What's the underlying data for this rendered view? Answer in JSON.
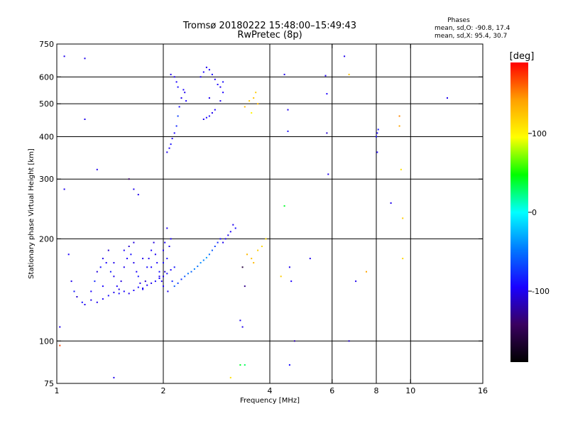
{
  "header": {
    "title_line1": "Tromsø 20180222 15:48:00–15:49:43",
    "title_line2": "RwPretec (8p)"
  },
  "phases": {
    "heading": "Phases",
    "line1": "mean, sd,O: -90.8, 17.4",
    "line2": "mean, sd,X:  95.4, 30.7"
  },
  "colorbar": {
    "title": "[deg]",
    "ticks": [
      {
        "value": 100,
        "label": "100"
      },
      {
        "value": 0,
        "label": "0"
      },
      {
        "value": -100,
        "label": "-100"
      }
    ],
    "range": [
      -190,
      190
    ],
    "stops": [
      "#000000",
      "#3a0060",
      "#1a00ff",
      "#0078ff",
      "#00ffff",
      "#00ff00",
      "#ffff00",
      "#ffa000",
      "#ff0000"
    ]
  },
  "chart_data": {
    "type": "scatter",
    "xlabel": "Frequency [MHz]",
    "ylabel": "Stationary phase Virtual Height [km]",
    "xscale": "log",
    "yscale": "log",
    "xlim": [
      1,
      16
    ],
    "ylim": [
      75,
      750
    ],
    "xticks": [
      {
        "value": 1,
        "label": "1"
      },
      {
        "value": 2,
        "label": "2"
      },
      {
        "value": 4,
        "label": "4"
      },
      {
        "value": 6,
        "label": "6"
      },
      {
        "value": 8,
        "label": "8"
      },
      {
        "value": 10,
        "label": "10"
      },
      {
        "value": 16,
        "label": "16"
      }
    ],
    "yticks": [
      {
        "value": 75,
        "label": "75"
      },
      {
        "value": 100,
        "label": "100"
      },
      {
        "value": 200,
        "label": "200"
      },
      {
        "value": 300,
        "label": "300"
      },
      {
        "value": 400,
        "label": "400"
      },
      {
        "value": 500,
        "label": "500"
      },
      {
        "value": 600,
        "label": "600"
      },
      {
        "value": 750,
        "label": "750"
      }
    ],
    "gridlines_x": [
      2,
      4,
      6,
      8,
      10
    ],
    "gridlines_y": [
      100,
      200,
      300,
      400,
      500,
      600
    ],
    "grid": true,
    "color_by": "phase [deg]",
    "points": [
      [
        1.08,
        180,
        -95
      ],
      [
        1.1,
        150,
        -100
      ],
      [
        1.12,
        140,
        -85
      ],
      [
        1.14,
        135,
        -110
      ],
      [
        1.18,
        130,
        -90
      ],
      [
        1.2,
        128,
        -100
      ],
      [
        1.25,
        140,
        -95
      ],
      [
        1.28,
        150,
        -80
      ],
      [
        1.3,
        160,
        -105
      ],
      [
        1.33,
        165,
        -90
      ],
      [
        1.35,
        175,
        -100
      ],
      [
        1.38,
        170,
        -95
      ],
      [
        1.4,
        185,
        -110
      ],
      [
        1.42,
        160,
        -85
      ],
      [
        1.45,
        155,
        -100
      ],
      [
        1.48,
        145,
        -95
      ],
      [
        1.5,
        138,
        -90
      ],
      [
        1.52,
        150,
        -105
      ],
      [
        1.55,
        165,
        -100
      ],
      [
        1.58,
        175,
        -95
      ],
      [
        1.6,
        190,
        -110
      ],
      [
        1.62,
        180,
        -90
      ],
      [
        1.65,
        170,
        -100
      ],
      [
        1.68,
        160,
        -95
      ],
      [
        1.7,
        155,
        -85
      ],
      [
        1.72,
        148,
        -100
      ],
      [
        1.75,
        142,
        -95
      ],
      [
        1.78,
        150,
        -110
      ],
      [
        1.8,
        165,
        -90
      ],
      [
        1.82,
        175,
        -100
      ],
      [
        1.85,
        185,
        -95
      ],
      [
        1.88,
        195,
        -105
      ],
      [
        1.9,
        180,
        -100
      ],
      [
        1.92,
        170,
        -95
      ],
      [
        1.95,
        160,
        -90
      ],
      [
        1.98,
        150,
        -100
      ],
      [
        2.0,
        145,
        -95
      ],
      [
        2.02,
        160,
        -110
      ],
      [
        2.05,
        175,
        -90
      ],
      [
        2.08,
        190,
        -100
      ],
      [
        2.1,
        200,
        -95
      ],
      [
        2.05,
        215,
        -100
      ],
      [
        2.12,
        150,
        -80
      ],
      [
        2.15,
        145,
        -60
      ],
      [
        2.2,
        148,
        -70
      ],
      [
        2.25,
        152,
        -75
      ],
      [
        2.3,
        155,
        -60
      ],
      [
        2.35,
        158,
        -50
      ],
      [
        2.4,
        160,
        -55
      ],
      [
        2.45,
        163,
        -45
      ],
      [
        2.5,
        166,
        -50
      ],
      [
        2.55,
        170,
        -40
      ],
      [
        2.6,
        173,
        -45
      ],
      [
        2.65,
        176,
        -35
      ],
      [
        2.7,
        180,
        -50
      ],
      [
        2.75,
        185,
        -60
      ],
      [
        2.8,
        190,
        -70
      ],
      [
        2.85,
        195,
        -80
      ],
      [
        2.9,
        200,
        -90
      ],
      [
        2.95,
        195,
        -100
      ],
      [
        3.0,
        200,
        -95
      ],
      [
        3.05,
        205,
        -100
      ],
      [
        3.1,
        210,
        -95
      ],
      [
        3.15,
        220,
        -100
      ],
      [
        3.2,
        215,
        -90
      ],
      [
        1.3,
        130,
        -100
      ],
      [
        1.35,
        133,
        -95
      ],
      [
        1.4,
        136,
        -90
      ],
      [
        1.45,
        139,
        -100
      ],
      [
        1.5,
        142,
        -105
      ],
      [
        1.55,
        140,
        -95
      ],
      [
        1.6,
        138,
        -100
      ],
      [
        1.65,
        141,
        -95
      ],
      [
        1.7,
        144,
        -90
      ],
      [
        1.75,
        143,
        -100
      ],
      [
        1.8,
        146,
        -95
      ],
      [
        1.85,
        148,
        -100
      ],
      [
        1.9,
        150,
        -90
      ],
      [
        1.95,
        153,
        -95
      ],
      [
        2.0,
        155,
        -100
      ],
      [
        2.05,
        158,
        -90
      ],
      [
        2.1,
        162,
        -95
      ],
      [
        2.15,
        165,
        -85
      ],
      [
        1.25,
        132,
        -100
      ],
      [
        1.35,
        145,
        -95
      ],
      [
        1.45,
        170,
        -100
      ],
      [
        1.55,
        185,
        -95
      ],
      [
        1.65,
        195,
        -105
      ],
      [
        1.75,
        175,
        -100
      ],
      [
        1.85,
        165,
        -95
      ],
      [
        1.95,
        155,
        -100
      ],
      [
        2.0,
        170,
        -90
      ],
      [
        2.0,
        185,
        -100
      ],
      [
        2.02,
        195,
        -95
      ],
      [
        2.06,
        140,
        -100
      ],
      [
        2.05,
        360,
        -100
      ],
      [
        2.08,
        370,
        -95
      ],
      [
        2.1,
        380,
        -90
      ],
      [
        2.12,
        395,
        -100
      ],
      [
        2.15,
        410,
        -95
      ],
      [
        2.18,
        430,
        -80
      ],
      [
        2.2,
        460,
        -70
      ],
      [
        2.22,
        490,
        -90
      ],
      [
        2.25,
        520,
        -100
      ],
      [
        2.28,
        550,
        -95
      ],
      [
        2.3,
        540,
        -100
      ],
      [
        2.32,
        510,
        -95
      ],
      [
        2.15,
        600,
        -100
      ],
      [
        2.18,
        580,
        -95
      ],
      [
        2.2,
        560,
        -90
      ],
      [
        2.1,
        610,
        -100
      ],
      [
        2.55,
        600,
        -100
      ],
      [
        2.6,
        620,
        -95
      ],
      [
        2.65,
        640,
        -100
      ],
      [
        2.7,
        630,
        -95
      ],
      [
        2.75,
        610,
        -90
      ],
      [
        2.8,
        590,
        -100
      ],
      [
        2.85,
        570,
        -95
      ],
      [
        2.9,
        560,
        -100
      ],
      [
        2.95,
        580,
        -90
      ],
      [
        2.6,
        450,
        -100
      ],
      [
        2.65,
        455,
        -95
      ],
      [
        2.7,
        460,
        -90
      ],
      [
        2.75,
        470,
        -100
      ],
      [
        2.8,
        480,
        -95
      ],
      [
        2.9,
        510,
        -100
      ],
      [
        2.95,
        540,
        -95
      ],
      [
        2.7,
        520,
        -100
      ],
      [
        3.4,
        490,
        130
      ],
      [
        3.5,
        510,
        120
      ],
      [
        3.6,
        520,
        125
      ],
      [
        3.7,
        500,
        130
      ],
      [
        3.65,
        540,
        120
      ],
      [
        3.55,
        470,
        100
      ],
      [
        3.45,
        180,
        130
      ],
      [
        3.55,
        175,
        125
      ],
      [
        3.6,
        170,
        130
      ],
      [
        3.7,
        185,
        120
      ],
      [
        3.8,
        190,
        115
      ],
      [
        3.9,
        200,
        110
      ],
      [
        3.35,
        165,
        -160
      ],
      [
        3.4,
        145,
        -130
      ],
      [
        3.3,
        115,
        -100
      ],
      [
        3.35,
        110,
        -100
      ],
      [
        3.3,
        85,
        40
      ],
      [
        3.4,
        85,
        30
      ],
      [
        4.55,
        165,
        -100
      ],
      [
        4.6,
        150,
        -95
      ],
      [
        4.7,
        100,
        -120
      ],
      [
        4.55,
        85,
        -90
      ],
      [
        4.5,
        480,
        -100
      ],
      [
        4.5,
        415,
        -90
      ],
      [
        4.4,
        250,
        40
      ],
      [
        4.4,
        610,
        -100
      ],
      [
        4.3,
        155,
        120
      ],
      [
        5.2,
        175,
        -100
      ],
      [
        5.75,
        605,
        -100
      ],
      [
        5.8,
        535,
        -95
      ],
      [
        5.8,
        410,
        -110
      ],
      [
        5.85,
        310,
        -100
      ],
      [
        6.5,
        690,
        -100
      ],
      [
        6.7,
        610,
        125
      ],
      [
        6.7,
        100,
        -110
      ],
      [
        7.0,
        150,
        -100
      ],
      [
        7.5,
        160,
        140
      ],
      [
        8.0,
        400,
        -90
      ],
      [
        8.05,
        410,
        -95
      ],
      [
        8.1,
        420,
        -85
      ],
      [
        8.05,
        360,
        -95
      ],
      [
        8.8,
        255,
        -100
      ],
      [
        9.3,
        460,
        150
      ],
      [
        9.3,
        430,
        140
      ],
      [
        9.4,
        320,
        110
      ],
      [
        9.5,
        230,
        120
      ],
      [
        9.5,
        175,
        115
      ],
      [
        12.7,
        520,
        -100
      ],
      [
        1.05,
        690,
        -100
      ],
      [
        1.2,
        680,
        -100
      ],
      [
        1.2,
        450,
        -100
      ],
      [
        1.3,
        320,
        -100
      ],
      [
        1.05,
        280,
        -100
      ],
      [
        1.02,
        110,
        -100
      ],
      [
        1.02,
        97,
        170
      ],
      [
        1.45,
        78,
        -100
      ],
      [
        1.6,
        300,
        -140
      ],
      [
        1.65,
        280,
        -100
      ],
      [
        1.7,
        270,
        -100
      ],
      [
        3.1,
        78,
        110
      ]
    ]
  }
}
